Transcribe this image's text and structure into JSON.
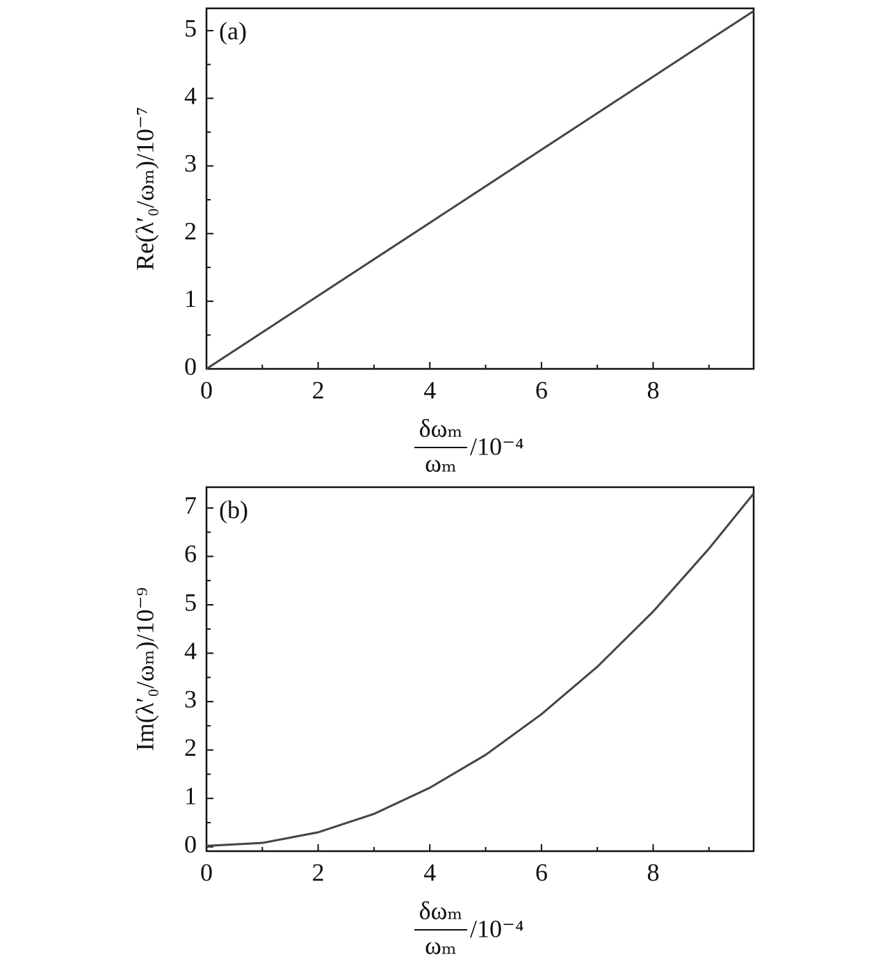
{
  "chart_data": [
    {
      "type": "line",
      "annotation": "(a)",
      "ylabel": "Re(λ′₀/ωₘ)/10⁻⁷",
      "xlabel_numerator": "δωₘ",
      "xlabel_denominator": "ωₘ",
      "xlabel_unit": "/10⁻⁴",
      "x": [
        0,
        1,
        2,
        3,
        4,
        5,
        6,
        7,
        8,
        9,
        9.8
      ],
      "values": [
        0,
        0.54,
        1.08,
        1.62,
        2.16,
        2.7,
        3.24,
        3.78,
        4.32,
        4.86,
        5.29
      ],
      "color": "#444444",
      "xlim": [
        0,
        9.8
      ],
      "ylim": [
        0,
        5.33
      ],
      "xticks": [
        0,
        2,
        4,
        6,
        8
      ],
      "yticks": [
        0,
        1,
        2,
        3,
        4,
        5
      ],
      "xminorticks": [
        1,
        3,
        5,
        7,
        9
      ],
      "yminorticks": [
        0.5,
        1.5,
        2.5,
        3.5,
        4.5
      ]
    },
    {
      "type": "line",
      "annotation": "(b)",
      "ylabel": "Im(λ′₀/ωₘ)/10⁻⁹",
      "xlabel_numerator": "δωₘ",
      "xlabel_denominator": "ωₘ",
      "xlabel_unit": "/10⁻⁴",
      "x": [
        0,
        1,
        2,
        3,
        4,
        5,
        6,
        7,
        8,
        9,
        9.8
      ],
      "values": [
        0.02,
        0.08,
        0.3,
        0.68,
        1.22,
        1.9,
        2.74,
        3.72,
        4.86,
        6.16,
        7.3
      ],
      "color": "#444444",
      "xlim": [
        0,
        9.8
      ],
      "ylim": [
        -0.09,
        7.43
      ],
      "xticks": [
        0,
        2,
        4,
        6,
        8
      ],
      "yticks": [
        0,
        1,
        2,
        3,
        4,
        5,
        6,
        7
      ],
      "xminorticks": [
        1,
        3,
        5,
        7,
        9
      ],
      "yminorticks": [
        0.5,
        1.5,
        2.5,
        3.5,
        4.5,
        5.5,
        6.5
      ]
    }
  ]
}
